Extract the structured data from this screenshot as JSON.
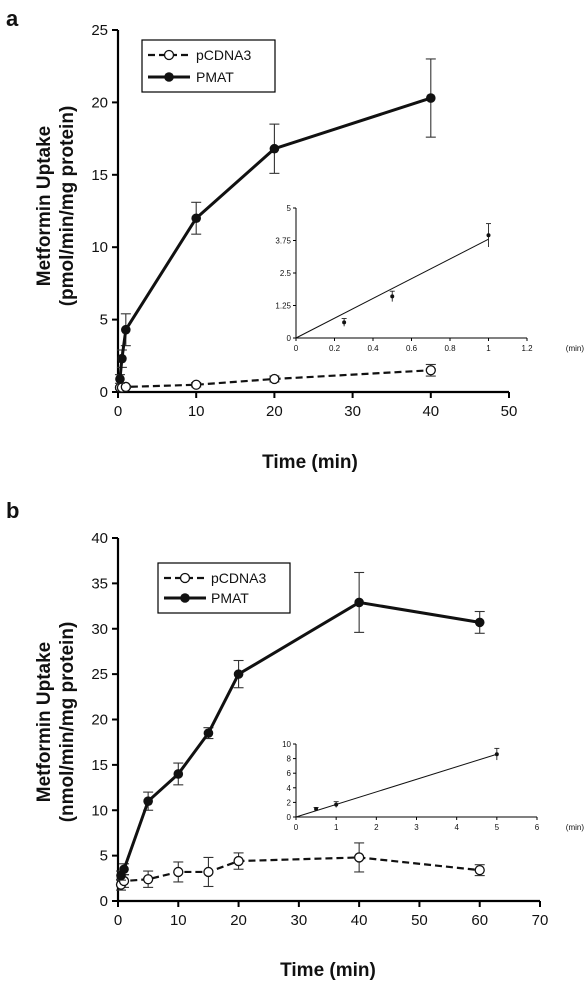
{
  "chart_data": [
    {
      "type": "line",
      "panel_label": "a",
      "xlabel": "Time (min)",
      "ylabel_line1": "Metformin Uptake",
      "ylabel_line2": "(pmol/min/mg protein)",
      "xlim": [
        0,
        50
      ],
      "ylim": [
        0,
        25
      ],
      "xticks": [
        "0",
        "10",
        "20",
        "30",
        "40",
        "50"
      ],
      "yticks": [
        "0",
        "5",
        "10",
        "15",
        "20",
        "25"
      ],
      "legend_position": "top-left",
      "series": [
        {
          "name": "pCDNA3",
          "style": "dashed-open-circle",
          "x": [
            0.25,
            0.5,
            1,
            10,
            20,
            40
          ],
          "y": [
            0.3,
            0.3,
            0.35,
            0.5,
            0.9,
            1.5
          ],
          "err": [
            0.1,
            0.1,
            0.1,
            0.15,
            0.2,
            0.4
          ]
        },
        {
          "name": "PMAT",
          "style": "solid-filled-circle",
          "x": [
            0.25,
            0.5,
            1,
            10,
            20,
            40
          ],
          "y": [
            0.9,
            2.3,
            4.3,
            12.0,
            16.8,
            20.3
          ],
          "err": [
            0.3,
            0.6,
            1.1,
            1.1,
            1.7,
            2.7
          ]
        }
      ],
      "inset": {
        "type": "line",
        "xunit": "(min)",
        "xlim": [
          0,
          1.2
        ],
        "ylim": [
          0,
          5
        ],
        "xticks": [
          "0",
          "0.2",
          "0.4",
          "0.6",
          "0.8",
          "1",
          "1.2"
        ],
        "yticks": [
          "0",
          "1.25",
          "2.5",
          "3.75",
          "5"
        ],
        "points": {
          "x": [
            0.25,
            0.5,
            1
          ],
          "y": [
            0.6,
            1.6,
            3.95
          ],
          "err": [
            0.15,
            0.2,
            0.45
          ]
        },
        "fit": {
          "x": [
            0,
            1
          ],
          "y": [
            0,
            3.8
          ]
        }
      }
    },
    {
      "type": "line",
      "panel_label": "b",
      "xlabel": "Time (min)",
      "ylabel_line1": "Metformin Uptake",
      "ylabel_line2": "(nmol/min/mg protein)",
      "xlim": [
        0,
        70
      ],
      "ylim": [
        0,
        40
      ],
      "xticks": [
        "0",
        "10",
        "20",
        "30",
        "40",
        "50",
        "60",
        "70"
      ],
      "yticks": [
        "0",
        "5",
        "10",
        "15",
        "20",
        "25",
        "30",
        "35",
        "40"
      ],
      "legend_position": "top-left",
      "series": [
        {
          "name": "pCDNA3",
          "style": "dashed-open-circle",
          "x": [
            0.5,
            1,
            5,
            10,
            15,
            20,
            40,
            60
          ],
          "y": [
            1.8,
            2.2,
            2.4,
            3.2,
            3.2,
            4.4,
            4.8,
            3.4
          ],
          "err": [
            0.6,
            0.7,
            0.9,
            1.1,
            1.6,
            0.9,
            1.6,
            0.6
          ]
        },
        {
          "name": "PMAT",
          "style": "solid-filled-circle",
          "x": [
            0.5,
            1,
            5,
            10,
            15,
            20,
            40,
            60
          ],
          "y": [
            2.8,
            3.5,
            11.0,
            14.0,
            18.5,
            25.0,
            32.9,
            30.7
          ],
          "err": [
            0.5,
            0.6,
            1.0,
            1.2,
            0.6,
            1.5,
            3.3,
            1.2
          ]
        }
      ],
      "inset": {
        "type": "line",
        "xunit": "(min)",
        "xlim": [
          0,
          6
        ],
        "ylim": [
          0,
          10
        ],
        "xticks": [
          "0",
          "1",
          "2",
          "3",
          "4",
          "5",
          "6"
        ],
        "yticks": [
          "0",
          "2",
          "4",
          "6",
          "8",
          "10"
        ],
        "points": {
          "x": [
            0.5,
            1,
            5
          ],
          "y": [
            1.1,
            1.7,
            8.6
          ],
          "err": [
            0.2,
            0.4,
            0.8
          ]
        },
        "fit": {
          "x": [
            0,
            5
          ],
          "y": [
            0,
            8.6
          ]
        }
      }
    }
  ]
}
